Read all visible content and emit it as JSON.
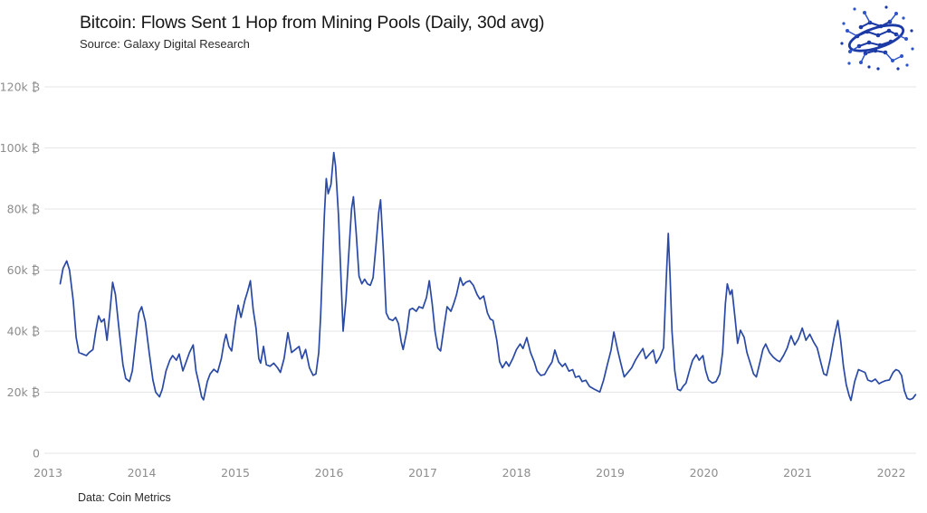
{
  "header": {
    "title": "Bitcoin: Flows Sent 1 Hop from Mining Pools (Daily, 30d avg)",
    "source": "Source: Galaxy Digital Research"
  },
  "footer": {
    "credit": "Data: Coin Metrics"
  },
  "logo": {
    "name": "Galaxy Digital constellation-sphere logo",
    "color_primary": "#1c3aa6",
    "color_secondary": "#2e54c9"
  },
  "chart_data": {
    "type": "line",
    "title": "Bitcoin: Flows Sent 1 Hop from Mining Pools (Daily, 30d avg)",
    "subtitle": "Source: Galaxy Digital Research",
    "source_note": "Data: Coin Metrics",
    "xlabel": "",
    "ylabel": "",
    "x_unit": "year",
    "y_unit": "thousand BTC (k ₿)",
    "xlim": [
      2013,
      2022.285
    ],
    "ylim": [
      0,
      120
    ],
    "grid": "horizontal-only",
    "grid_color": "#e6e6e6",
    "label_color": "#8d8d8d",
    "legend": "none",
    "x_ticks": [
      {
        "value": 2013,
        "label": "2013"
      },
      {
        "value": 2014,
        "label": "2014"
      },
      {
        "value": 2015,
        "label": "2015"
      },
      {
        "value": 2016,
        "label": "2016"
      },
      {
        "value": 2017,
        "label": "2017"
      },
      {
        "value": 2018,
        "label": "2018"
      },
      {
        "value": 2019,
        "label": "2019"
      },
      {
        "value": 2020,
        "label": "2020"
      },
      {
        "value": 2021,
        "label": "2021"
      },
      {
        "value": 2022,
        "label": "2022"
      }
    ],
    "y_ticks": [
      {
        "value": 0,
        "label": "0"
      },
      {
        "value": 20,
        "label": "20k ₿"
      },
      {
        "value": 40,
        "label": "40k ₿"
      },
      {
        "value": 60,
        "label": "60k ₿"
      },
      {
        "value": 80,
        "label": "80k ₿"
      },
      {
        "value": 100,
        "label": "100k ₿"
      },
      {
        "value": 120,
        "label": "120k ₿"
      }
    ],
    "series": [
      {
        "name": "BTC flows sent 1 hop from mining pools (daily, 30d avg)",
        "color": "#2a49a5",
        "stroke_width": 1.7,
        "points": [
          [
            2013.13,
            55.5
          ],
          [
            2013.16,
            60.5
          ],
          [
            2013.2,
            63
          ],
          [
            2013.23,
            60
          ],
          [
            2013.27,
            50
          ],
          [
            2013.3,
            38
          ],
          [
            2013.33,
            33
          ],
          [
            2013.37,
            32.5
          ],
          [
            2013.41,
            32
          ],
          [
            2013.44,
            33
          ],
          [
            2013.48,
            34
          ],
          [
            2013.51,
            40
          ],
          [
            2013.54,
            45
          ],
          [
            2013.57,
            43
          ],
          [
            2013.6,
            44
          ],
          [
            2013.63,
            37
          ],
          [
            2013.66,
            46
          ],
          [
            2013.69,
            56
          ],
          [
            2013.72,
            52
          ],
          [
            2013.76,
            40
          ],
          [
            2013.8,
            29
          ],
          [
            2013.83,
            24.5
          ],
          [
            2013.87,
            23.5
          ],
          [
            2013.9,
            27
          ],
          [
            2013.94,
            38
          ],
          [
            2013.97,
            46
          ],
          [
            2014.0,
            48
          ],
          [
            2014.04,
            43
          ],
          [
            2014.08,
            33
          ],
          [
            2014.12,
            24
          ],
          [
            2014.15,
            20
          ],
          [
            2014.19,
            18.5
          ],
          [
            2014.22,
            21
          ],
          [
            2014.26,
            27
          ],
          [
            2014.3,
            30.5
          ],
          [
            2014.33,
            32
          ],
          [
            2014.37,
            30.5
          ],
          [
            2014.4,
            32.5
          ],
          [
            2014.44,
            27
          ],
          [
            2014.47,
            29.5
          ],
          [
            2014.51,
            33
          ],
          [
            2014.55,
            35.5
          ],
          [
            2014.58,
            27
          ],
          [
            2014.61,
            23
          ],
          [
            2014.64,
            18.5
          ],
          [
            2014.66,
            17.5
          ],
          [
            2014.7,
            23.5
          ],
          [
            2014.73,
            26
          ],
          [
            2014.77,
            27.5
          ],
          [
            2014.81,
            26.5
          ],
          [
            2014.85,
            31
          ],
          [
            2014.88,
            36.5
          ],
          [
            2014.9,
            39
          ],
          [
            2014.93,
            35
          ],
          [
            2014.96,
            33.5
          ],
          [
            2015.0,
            43
          ],
          [
            2015.03,
            48.5
          ],
          [
            2015.06,
            44.5
          ],
          [
            2015.1,
            50
          ],
          [
            2015.13,
            53
          ],
          [
            2015.16,
            56.5
          ],
          [
            2015.19,
            47
          ],
          [
            2015.22,
            41
          ],
          [
            2015.25,
            31
          ],
          [
            2015.27,
            29.5
          ],
          [
            2015.3,
            35
          ],
          [
            2015.33,
            29
          ],
          [
            2015.37,
            28.5
          ],
          [
            2015.41,
            29.5
          ],
          [
            2015.45,
            28
          ],
          [
            2015.48,
            26.5
          ],
          [
            2015.52,
            31
          ],
          [
            2015.56,
            39.5
          ],
          [
            2015.6,
            33
          ],
          [
            2015.64,
            34
          ],
          [
            2015.68,
            35
          ],
          [
            2015.71,
            31
          ],
          [
            2015.75,
            34
          ],
          [
            2015.79,
            28
          ],
          [
            2015.83,
            25.5
          ],
          [
            2015.86,
            26
          ],
          [
            2015.89,
            33
          ],
          [
            2015.91,
            45
          ],
          [
            2015.93,
            62
          ],
          [
            2015.95,
            78
          ],
          [
            2015.97,
            90
          ],
          [
            2015.99,
            85
          ],
          [
            2016.02,
            88
          ],
          [
            2016.05,
            98.5
          ],
          [
            2016.07,
            94
          ],
          [
            2016.1,
            78
          ],
          [
            2016.13,
            55
          ],
          [
            2016.15,
            40
          ],
          [
            2016.18,
            50
          ],
          [
            2016.21,
            65
          ],
          [
            2016.24,
            80
          ],
          [
            2016.26,
            84
          ],
          [
            2016.29,
            72
          ],
          [
            2016.32,
            58
          ],
          [
            2016.35,
            55.5
          ],
          [
            2016.38,
            57
          ],
          [
            2016.41,
            55.5
          ],
          [
            2016.44,
            55
          ],
          [
            2016.47,
            57.5
          ],
          [
            2016.5,
            68
          ],
          [
            2016.53,
            79
          ],
          [
            2016.55,
            83
          ],
          [
            2016.58,
            66
          ],
          [
            2016.61,
            46
          ],
          [
            2016.64,
            44
          ],
          [
            2016.68,
            43.5
          ],
          [
            2016.71,
            44.5
          ],
          [
            2016.74,
            42.5
          ],
          [
            2016.77,
            36.5
          ],
          [
            2016.79,
            34
          ],
          [
            2016.83,
            40
          ],
          [
            2016.86,
            47
          ],
          [
            2016.89,
            47.5
          ],
          [
            2016.93,
            46.5
          ],
          [
            2016.96,
            48
          ],
          [
            2017.0,
            47.5
          ],
          [
            2017.04,
            51
          ],
          [
            2017.07,
            56.5
          ],
          [
            2017.1,
            49
          ],
          [
            2017.13,
            40
          ],
          [
            2017.16,
            34.5
          ],
          [
            2017.19,
            33.5
          ],
          [
            2017.23,
            42
          ],
          [
            2017.26,
            48
          ],
          [
            2017.3,
            46.5
          ],
          [
            2017.33,
            49
          ],
          [
            2017.36,
            52
          ],
          [
            2017.4,
            57.5
          ],
          [
            2017.43,
            55
          ],
          [
            2017.46,
            56
          ],
          [
            2017.5,
            56.5
          ],
          [
            2017.54,
            55
          ],
          [
            2017.58,
            52
          ],
          [
            2017.61,
            50.5
          ],
          [
            2017.65,
            51.5
          ],
          [
            2017.69,
            46
          ],
          [
            2017.72,
            44
          ],
          [
            2017.75,
            43.5
          ],
          [
            2017.79,
            37
          ],
          [
            2017.82,
            30
          ],
          [
            2017.85,
            28
          ],
          [
            2017.89,
            30
          ],
          [
            2017.92,
            28.5
          ],
          [
            2017.96,
            31
          ],
          [
            2018.0,
            34
          ],
          [
            2018.04,
            35.8
          ],
          [
            2018.07,
            34.3
          ],
          [
            2018.11,
            37.9
          ],
          [
            2018.15,
            33
          ],
          [
            2018.19,
            29.9
          ],
          [
            2018.22,
            26.9
          ],
          [
            2018.26,
            25.5
          ],
          [
            2018.3,
            25.8
          ],
          [
            2018.34,
            28
          ],
          [
            2018.38,
            29.9
          ],
          [
            2018.41,
            33.8
          ],
          [
            2018.45,
            29.9
          ],
          [
            2018.49,
            28.4
          ],
          [
            2018.52,
            29.4
          ],
          [
            2018.56,
            26.9
          ],
          [
            2018.6,
            27.4
          ],
          [
            2018.63,
            24.9
          ],
          [
            2018.67,
            25.3
          ],
          [
            2018.7,
            23.5
          ],
          [
            2018.74,
            23.9
          ],
          [
            2018.78,
            21.9
          ],
          [
            2018.83,
            21
          ],
          [
            2018.89,
            20.1
          ],
          [
            2018.93,
            24
          ],
          [
            2018.97,
            29
          ],
          [
            2019.01,
            33.8
          ],
          [
            2019.04,
            39.7
          ],
          [
            2019.08,
            33.8
          ],
          [
            2019.11,
            29.9
          ],
          [
            2019.15,
            25
          ],
          [
            2019.19,
            26.5
          ],
          [
            2019.23,
            28
          ],
          [
            2019.27,
            30.5
          ],
          [
            2019.31,
            32.5
          ],
          [
            2019.35,
            34.3
          ],
          [
            2019.38,
            31
          ],
          [
            2019.42,
            32.5
          ],
          [
            2019.46,
            33.8
          ],
          [
            2019.49,
            29.5
          ],
          [
            2019.53,
            31.5
          ],
          [
            2019.57,
            34.5
          ],
          [
            2019.6,
            58
          ],
          [
            2019.62,
            72
          ],
          [
            2019.64,
            58
          ],
          [
            2019.66,
            40
          ],
          [
            2019.69,
            27
          ],
          [
            2019.72,
            21
          ],
          [
            2019.75,
            20.5
          ],
          [
            2019.78,
            22
          ],
          [
            2019.81,
            23
          ],
          [
            2019.85,
            27.5
          ],
          [
            2019.88,
            30.5
          ],
          [
            2019.92,
            32.3
          ],
          [
            2019.95,
            30.5
          ],
          [
            2019.99,
            32
          ],
          [
            2020.02,
            27
          ],
          [
            2020.05,
            24
          ],
          [
            2020.09,
            23
          ],
          [
            2020.13,
            23.5
          ],
          [
            2020.17,
            26
          ],
          [
            2020.2,
            33
          ],
          [
            2020.23,
            49
          ],
          [
            2020.25,
            55.5
          ],
          [
            2020.28,
            52
          ],
          [
            2020.3,
            53.5
          ],
          [
            2020.33,
            45
          ],
          [
            2020.36,
            36
          ],
          [
            2020.39,
            40.3
          ],
          [
            2020.43,
            38
          ],
          [
            2020.46,
            33
          ],
          [
            2020.5,
            29
          ],
          [
            2020.53,
            26
          ],
          [
            2020.56,
            25
          ],
          [
            2020.6,
            30
          ],
          [
            2020.63,
            34
          ],
          [
            2020.66,
            35.8
          ],
          [
            2020.7,
            33
          ],
          [
            2020.74,
            31.5
          ],
          [
            2020.78,
            30.5
          ],
          [
            2020.81,
            30
          ],
          [
            2020.85,
            32
          ],
          [
            2020.89,
            34.5
          ],
          [
            2020.93,
            38.5
          ],
          [
            2020.97,
            35.5
          ],
          [
            2021.01,
            37.5
          ],
          [
            2021.05,
            41
          ],
          [
            2021.09,
            37
          ],
          [
            2021.13,
            39
          ],
          [
            2021.17,
            36.5
          ],
          [
            2021.21,
            34.5
          ],
          [
            2021.25,
            29.5
          ],
          [
            2021.28,
            26
          ],
          [
            2021.31,
            25.5
          ],
          [
            2021.35,
            31
          ],
          [
            2021.39,
            38
          ],
          [
            2021.43,
            43.5
          ],
          [
            2021.46,
            37
          ],
          [
            2021.49,
            28.5
          ],
          [
            2021.52,
            22.5
          ],
          [
            2021.55,
            19
          ],
          [
            2021.57,
            17.3
          ],
          [
            2021.61,
            23.5
          ],
          [
            2021.65,
            27.4
          ],
          [
            2021.68,
            27
          ],
          [
            2021.72,
            26.5
          ],
          [
            2021.75,
            24
          ],
          [
            2021.79,
            23.5
          ],
          [
            2021.83,
            24.3
          ],
          [
            2021.87,
            22.8
          ],
          [
            2021.9,
            23.3
          ],
          [
            2021.94,
            23.8
          ],
          [
            2021.98,
            24
          ],
          [
            2022.02,
            26.5
          ],
          [
            2022.05,
            27.4
          ],
          [
            2022.08,
            27
          ],
          [
            2022.11,
            25.5
          ],
          [
            2022.14,
            20.5
          ],
          [
            2022.17,
            18
          ],
          [
            2022.2,
            17.6
          ],
          [
            2022.23,
            18
          ],
          [
            2022.26,
            19.2
          ]
        ]
      }
    ]
  }
}
